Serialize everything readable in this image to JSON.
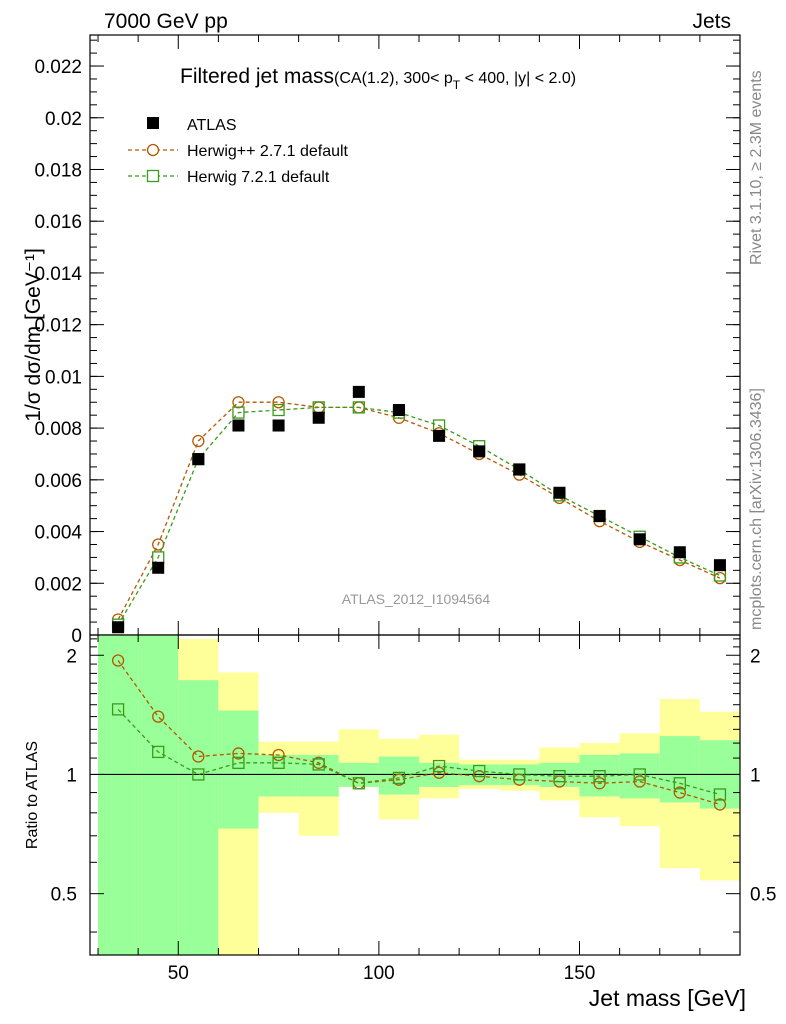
{
  "header": {
    "left": "7000 GeV pp",
    "right": "Jets"
  },
  "side_text": {
    "rivet": "Rivet 3.1.10, ≥ 2.3M events",
    "mcplots": "mcplots.cern.ch [arXiv:1306.3436]"
  },
  "chart_data": [
    {
      "type": "scatter",
      "panel": "main",
      "title": "Filtered jet mass",
      "title_suffix": "(CA(1.2), 300< p",
      "title_sub": "T",
      "title_tail": " < 400, |y| < 2.0)",
      "ylabel": "1/σ dσ/dm [GeV⁻¹]",
      "watermark": "ATLAS_2012_I1094564",
      "xlim": [
        28,
        190
      ],
      "ylim": [
        0,
        0.0232
      ],
      "yticks": [
        0,
        0.002,
        0.004,
        0.006,
        0.008,
        0.01,
        0.012,
        0.014,
        0.016,
        0.018,
        0.02,
        0.022
      ],
      "ytick_labels": [
        "0",
        "0.002",
        "0.004",
        "0.006",
        "0.008",
        "0.01",
        "0.012",
        "0.014",
        "0.016",
        "0.018",
        "0.02",
        "0.022"
      ],
      "legend_position": "top-left",
      "series": [
        {
          "name": "ATLAS",
          "marker": "filled-square",
          "color": "#000000",
          "x": [
            35,
            45,
            55,
            65,
            75,
            85,
            95,
            105,
            115,
            125,
            135,
            145,
            155,
            165,
            175,
            185
          ],
          "y": [
            0.0003,
            0.0026,
            0.0068,
            0.0081,
            0.0081,
            0.0084,
            0.0094,
            0.0087,
            0.0077,
            0.0071,
            0.0064,
            0.0055,
            0.0046,
            0.0037,
            0.0032,
            0.0027
          ]
        },
        {
          "name": "Herwig++ 2.7.1 default",
          "marker": "open-circle",
          "color": "#b35900",
          "x": [
            35,
            45,
            55,
            65,
            75,
            85,
            95,
            105,
            115,
            125,
            135,
            145,
            155,
            165,
            175,
            185
          ],
          "y": [
            0.0006,
            0.0035,
            0.0075,
            0.009,
            0.009,
            0.0088,
            0.0088,
            0.0084,
            0.0078,
            0.007,
            0.0062,
            0.0053,
            0.0044,
            0.0036,
            0.0029,
            0.0022
          ]
        },
        {
          "name": "Herwig 7.2.1 default",
          "marker": "open-square",
          "color": "#3c9a1a",
          "x": [
            35,
            45,
            55,
            65,
            75,
            85,
            95,
            105,
            115,
            125,
            135,
            145,
            155,
            165,
            175,
            185
          ],
          "y": [
            0.0004,
            0.003,
            0.0068,
            0.0086,
            0.0087,
            0.0088,
            0.0088,
            0.0086,
            0.0081,
            0.0073,
            0.0064,
            0.0054,
            0.0046,
            0.0038,
            0.003,
            0.0023
          ]
        }
      ]
    },
    {
      "type": "scatter",
      "panel": "ratio",
      "ylabel": "Ratio to ATLAS",
      "xlabel": "Jet mass [GeV]",
      "xlim": [
        28,
        190
      ],
      "ylim": [
        0.35,
        2.25
      ],
      "xticks": [
        50,
        100,
        150
      ],
      "xtick_labels": [
        "50",
        "100",
        "150"
      ],
      "yticks": [
        0.5,
        1,
        2
      ],
      "ytick_labels": [
        "0.5",
        "1",
        "2"
      ],
      "bands": {
        "bin_edges": [
          30,
          40,
          50,
          60,
          70,
          80,
          90,
          100,
          110,
          120,
          130,
          140,
          150,
          160,
          170,
          180,
          190
        ],
        "stat_color": "#99ff99",
        "total_color": "#ffff99",
        "stat_lo": [
          0.35,
          0.35,
          0.35,
          0.73,
          0.88,
          0.88,
          0.93,
          0.89,
          0.93,
          0.94,
          0.94,
          0.93,
          0.88,
          0.87,
          0.85,
          0.82,
          0.8
        ],
        "stat_hi": [
          2.25,
          2.25,
          1.73,
          1.45,
          1.12,
          1.12,
          1.07,
          1.11,
          1.07,
          1.06,
          1.06,
          1.07,
          1.12,
          1.13,
          1.25,
          1.22,
          1.25
        ],
        "total_lo": [
          0.35,
          0.35,
          0.35,
          0.35,
          0.8,
          0.7,
          0.93,
          0.77,
          0.87,
          0.92,
          0.91,
          0.86,
          0.78,
          0.74,
          0.58,
          0.54,
          0.51
        ],
        "total_hi": [
          2.25,
          2.25,
          2.2,
          1.81,
          1.21,
          1.21,
          1.3,
          1.23,
          1.26,
          1.09,
          1.09,
          1.17,
          1.2,
          1.27,
          1.55,
          1.44,
          1.53
        ]
      },
      "series": [
        {
          "name": "Herwig++ 2.7.1 default",
          "marker": "open-circle",
          "color": "#b35900",
          "x": [
            35,
            45,
            55,
            65,
            75,
            85,
            95,
            105,
            115,
            125,
            135,
            145,
            155,
            165,
            175,
            185
          ],
          "y": [
            1.94,
            1.4,
            1.11,
            1.13,
            1.12,
            1.07,
            0.95,
            0.97,
            1.01,
            0.99,
            0.97,
            0.96,
            0.95,
            0.96,
            0.9,
            0.84
          ]
        },
        {
          "name": "Herwig 7.2.1 default",
          "marker": "open-square",
          "color": "#3c9a1a",
          "x": [
            35,
            45,
            55,
            65,
            75,
            85,
            95,
            105,
            115,
            125,
            135,
            145,
            155,
            165,
            175,
            185
          ],
          "y": [
            1.46,
            1.14,
            1.0,
            1.07,
            1.07,
            1.06,
            0.95,
            0.98,
            1.05,
            1.02,
            1.0,
            0.99,
            0.99,
            1.0,
            0.95,
            0.89
          ]
        }
      ]
    }
  ]
}
